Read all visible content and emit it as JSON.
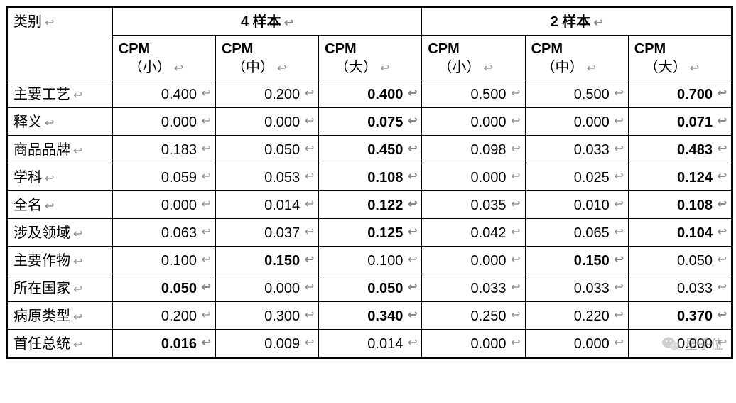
{
  "table": {
    "category_header": "类别",
    "groups": [
      "4 样本",
      "2 样本"
    ],
    "sub_labels": [
      {
        "line1": "CPM",
        "line2": "（小）"
      },
      {
        "line1": "CPM",
        "line2": "（中）"
      },
      {
        "line1": "CPM",
        "line2": "（大）"
      }
    ],
    "paragraph_mark": "↩",
    "columns_count": 7,
    "rows": [
      {
        "label": "主要工艺",
        "values": [
          "0.400",
          "0.200",
          "0.400",
          "0.500",
          "0.500",
          "0.700"
        ],
        "bold": [
          false,
          false,
          true,
          false,
          false,
          true
        ]
      },
      {
        "label": "释义",
        "values": [
          "0.000",
          "0.000",
          "0.075",
          "0.000",
          "0.000",
          "0.071"
        ],
        "bold": [
          false,
          false,
          true,
          false,
          false,
          true
        ]
      },
      {
        "label": "商品品牌",
        "values": [
          "0.183",
          "0.050",
          "0.450",
          "0.098",
          "0.033",
          "0.483"
        ],
        "bold": [
          false,
          false,
          true,
          false,
          false,
          true
        ]
      },
      {
        "label": "学科",
        "values": [
          "0.059",
          "0.053",
          "0.108",
          "0.000",
          "0.025",
          "0.124"
        ],
        "bold": [
          false,
          false,
          true,
          false,
          false,
          true
        ]
      },
      {
        "label": "全名",
        "values": [
          "0.000",
          "0.014",
          "0.122",
          "0.035",
          "0.010",
          "0.108"
        ],
        "bold": [
          false,
          false,
          true,
          false,
          false,
          true
        ]
      },
      {
        "label": "涉及领域",
        "values": [
          "0.063",
          "0.037",
          "0.125",
          "0.042",
          "0.065",
          "0.104"
        ],
        "bold": [
          false,
          false,
          true,
          false,
          false,
          true
        ]
      },
      {
        "label": "主要作物",
        "values": [
          "0.100",
          "0.150",
          "0.100",
          "0.000",
          "0.150",
          "0.050"
        ],
        "bold": [
          false,
          true,
          false,
          false,
          true,
          false
        ]
      },
      {
        "label": "所在国家",
        "values": [
          "0.050",
          "0.000",
          "0.050",
          "0.033",
          "0.033",
          "0.033"
        ],
        "bold": [
          true,
          false,
          true,
          false,
          false,
          false
        ]
      },
      {
        "label": "病原类型",
        "values": [
          "0.200",
          "0.300",
          "0.340",
          "0.250",
          "0.220",
          "0.370"
        ],
        "bold": [
          false,
          false,
          true,
          false,
          false,
          true
        ]
      },
      {
        "label": "首任总统",
        "values": [
          "0.016",
          "0.009",
          "0.014",
          "0.000",
          "0.000",
          "0.000"
        ],
        "bold": [
          true,
          false,
          false,
          false,
          false,
          false
        ]
      }
    ]
  },
  "style": {
    "font_family": "Microsoft YaHei",
    "header_fontsize_pt": 15,
    "cell_fontsize_pt": 15,
    "border_color": "#000000",
    "background_color": "#ffffff",
    "mark_color": "#888888",
    "bold_weight": 700
  },
  "watermark": {
    "text": "量子位",
    "icon_name": "wechat-icon"
  }
}
